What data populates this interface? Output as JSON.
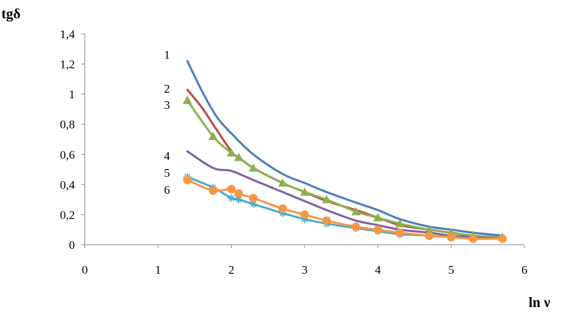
{
  "chart_data": {
    "type": "line",
    "title": "",
    "xlabel": "ln ν",
    "ylabel": "tgδ",
    "xlim": [
      0,
      6
    ],
    "ylim": [
      0,
      1.4
    ],
    "xticks": [
      "0",
      "1",
      "2",
      "3",
      "4",
      "5",
      "6"
    ],
    "yticks": [
      "0",
      "0,2",
      "0,4",
      "0,6",
      "0,8",
      "1",
      "1,2",
      "1,4"
    ],
    "grid": false,
    "series": [
      {
        "label": "1",
        "color": "#4a7ebb",
        "marker": "none",
        "x": [
          1.4,
          1.6,
          1.8,
          2.0,
          2.3,
          2.7,
          3.0,
          3.3,
          3.7,
          4.0,
          4.3,
          4.7,
          5.0,
          5.3,
          5.7
        ],
        "y": [
          1.22,
          1.02,
          0.85,
          0.74,
          0.6,
          0.47,
          0.41,
          0.35,
          0.28,
          0.23,
          0.17,
          0.12,
          0.1,
          0.08,
          0.06
        ]
      },
      {
        "label": "2",
        "color": "#be4b48",
        "marker": "none",
        "x": [
          1.4,
          1.6,
          1.75,
          2.0,
          2.1,
          2.3,
          2.7,
          3.0,
          3.3,
          3.7,
          4.0,
          4.3,
          4.7,
          5.0,
          5.3,
          5.7
        ],
        "y": [
          1.03,
          0.91,
          0.8,
          0.62,
          0.58,
          0.51,
          0.41,
          0.35,
          0.29,
          0.23,
          0.18,
          0.13,
          0.1,
          0.08,
          0.06,
          0.05
        ]
      },
      {
        "label": "3",
        "color": "#8cb04f",
        "marker": "triangle",
        "x": [
          1.4,
          1.75,
          2.0,
          2.1,
          2.3,
          2.7,
          3.0,
          3.3,
          3.7,
          4.0,
          4.3,
          4.7,
          5.0,
          5.3,
          5.7
        ],
        "y": [
          0.96,
          0.72,
          0.61,
          0.58,
          0.51,
          0.41,
          0.35,
          0.3,
          0.22,
          0.18,
          0.14,
          0.1,
          0.08,
          0.06,
          0.05
        ]
      },
      {
        "label": "4",
        "color": "#7e62a1",
        "marker": "none",
        "x": [
          1.4,
          1.75,
          2.0,
          2.3,
          2.7,
          3.0,
          3.3,
          3.7,
          4.0,
          4.3,
          4.7,
          5.0,
          5.3,
          5.7
        ],
        "y": [
          0.62,
          0.51,
          0.49,
          0.43,
          0.35,
          0.29,
          0.23,
          0.16,
          0.13,
          0.1,
          0.08,
          0.06,
          0.05,
          0.04
        ]
      },
      {
        "label": "5",
        "color": "#4bacc6",
        "marker": "star",
        "x": [
          1.4,
          1.75,
          2.0,
          2.1,
          2.3,
          2.7,
          3.0,
          3.3,
          3.7,
          4.0,
          4.3,
          4.7,
          5.0,
          5.3,
          5.7
        ],
        "y": [
          0.45,
          0.38,
          0.31,
          0.3,
          0.27,
          0.21,
          0.17,
          0.14,
          0.11,
          0.09,
          0.07,
          0.06,
          0.05,
          0.04,
          0.04
        ]
      },
      {
        "label": "6",
        "color": "#f79646",
        "marker": "circle",
        "x": [
          1.4,
          1.75,
          2.0,
          2.1,
          2.3,
          2.7,
          3.0,
          3.3,
          3.7,
          4.0,
          4.3,
          4.7,
          5.0,
          5.3,
          5.7
        ],
        "y": [
          0.43,
          0.36,
          0.37,
          0.34,
          0.31,
          0.24,
          0.2,
          0.16,
          0.12,
          0.1,
          0.08,
          0.06,
          0.05,
          0.04,
          0.04
        ]
      }
    ]
  }
}
